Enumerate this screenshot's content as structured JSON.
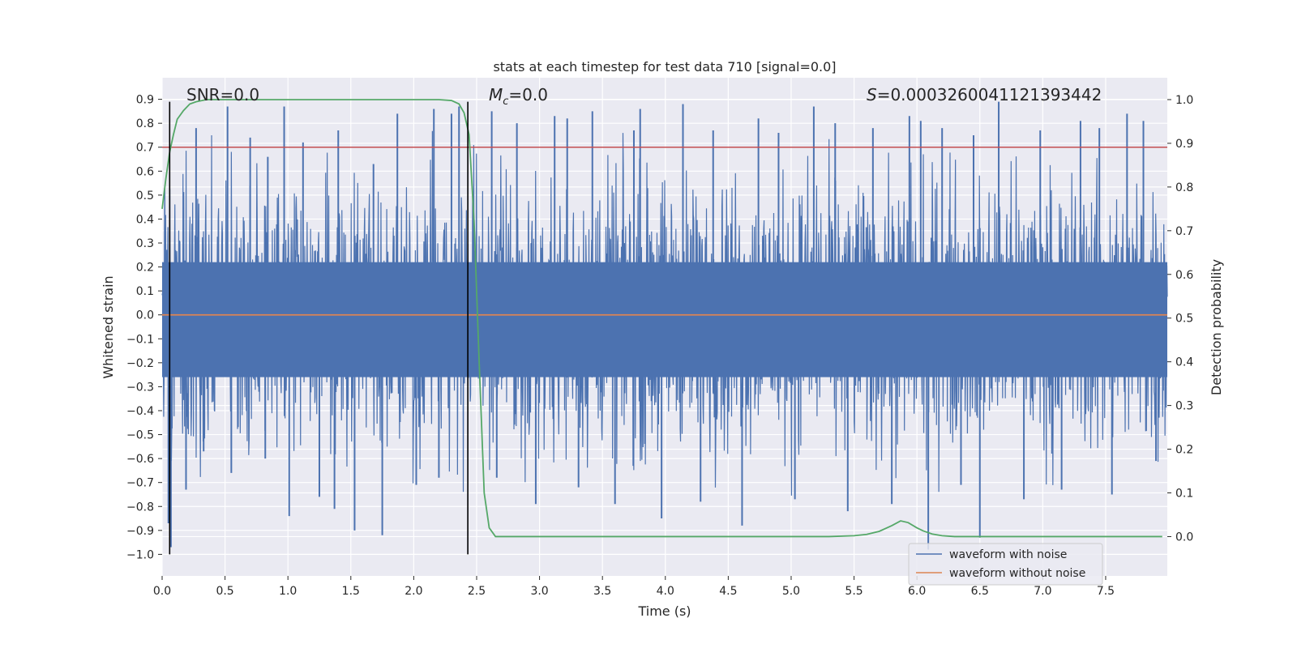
{
  "chart_data": {
    "type": "line",
    "title": "stats at each timestep for test data 710 [signal=0.0]",
    "xlabel": "Time (s)",
    "ylabel": "Whitened strain",
    "y2label": "Detection probability",
    "xlim": [
      0.0,
      7.99
    ],
    "ylim": [
      -1.09,
      0.99
    ],
    "y2lim": [
      -0.09,
      1.05
    ],
    "x_ticks": [
      0.0,
      0.5,
      1.0,
      1.5,
      2.0,
      2.5,
      3.0,
      3.5,
      4.0,
      4.5,
      5.0,
      5.5,
      6.0,
      6.5,
      7.0,
      7.5
    ],
    "x_tick_labels": [
      "0.0",
      "0.5",
      "1.0",
      "1.5",
      "2.0",
      "2.5",
      "3.0",
      "3.5",
      "4.0",
      "4.5",
      "5.0",
      "5.5",
      "6.0",
      "6.5",
      "7.0",
      "7.5"
    ],
    "y_ticks": [
      0.9,
      0.8,
      0.7,
      0.6,
      0.5,
      0.4,
      0.3,
      0.2,
      0.1,
      0.0,
      -0.1,
      -0.2,
      -0.3,
      -0.4,
      -0.5,
      -0.6,
      -0.7,
      -0.8,
      -0.9,
      -1.0
    ],
    "y_tick_labels": [
      "0.9",
      "0.8",
      "0.7",
      "0.6",
      "0.5",
      "0.4",
      "0.3",
      "0.2",
      "0.1",
      "0.0",
      "−0.1",
      "−0.2",
      "−0.3",
      "−0.4",
      "−0.5",
      "−0.6",
      "−0.7",
      "−0.8",
      "−0.9",
      "−1.0"
    ],
    "y2_ticks": [
      1.0,
      0.9,
      0.8,
      0.7,
      0.6,
      0.5,
      0.4,
      0.3,
      0.2,
      0.1,
      0.0
    ],
    "y2_tick_labels": [
      "1.0",
      "0.9",
      "0.8",
      "0.7",
      "0.6",
      "0.5",
      "0.4",
      "0.3",
      "0.2",
      "0.1",
      "0.0"
    ],
    "grid": true,
    "legend_placement": "lower-right",
    "annotations": {
      "snr": "SNR=0.0",
      "mc_symbol": "M",
      "mc_sub": "c",
      "mc_value": "=0.0",
      "s_symbol": "S",
      "s_value": "=0.00032600411213934​42"
    },
    "series": [
      {
        "name": "waveform with noise",
        "color": "#4c72b0",
        "axis": "left",
        "kind": "noise",
        "envelope_amplitude": 0.5,
        "peaks": [
          [
            0.05,
            -0.87
          ],
          [
            0.07,
            -0.97
          ],
          [
            0.19,
            -0.73
          ],
          [
            0.27,
            0.78
          ],
          [
            0.33,
            -0.57
          ],
          [
            0.52,
            0.87
          ],
          [
            0.55,
            -0.66
          ],
          [
            0.7,
            0.74
          ],
          [
            0.82,
            -0.6
          ],
          [
            0.84,
            0.66
          ],
          [
            0.97,
            0.87
          ],
          [
            1.01,
            -0.84
          ],
          [
            1.12,
            0.72
          ],
          [
            1.25,
            -0.76
          ],
          [
            1.37,
            -0.81
          ],
          [
            1.4,
            0.77
          ],
          [
            1.53,
            -0.9
          ],
          [
            1.68,
            0.63
          ],
          [
            1.75,
            -0.92
          ],
          [
            1.87,
            0.84
          ],
          [
            2.02,
            -0.71
          ],
          [
            2.16,
            0.86
          ],
          [
            2.2,
            -0.68
          ],
          [
            2.3,
            0.84
          ],
          [
            2.36,
            0.87
          ],
          [
            2.62,
            0.85
          ],
          [
            2.66,
            -0.68
          ],
          [
            2.82,
            0.8
          ],
          [
            2.97,
            -0.79
          ],
          [
            3.12,
            0.83
          ],
          [
            3.22,
            0.82
          ],
          [
            3.31,
            -0.72
          ],
          [
            3.42,
            0.85
          ],
          [
            3.6,
            -0.79
          ],
          [
            3.75,
            0.77
          ],
          [
            3.8,
            0.86
          ],
          [
            3.97,
            -0.85
          ],
          [
            4.14,
            0.88
          ],
          [
            4.28,
            -0.78
          ],
          [
            4.38,
            0.77
          ],
          [
            4.61,
            -0.88
          ],
          [
            4.74,
            0.82
          ],
          [
            4.9,
            0.76
          ],
          [
            5.03,
            -0.77
          ],
          [
            5.18,
            0.87
          ],
          [
            5.35,
            0.8
          ],
          [
            5.45,
            -0.82
          ],
          [
            5.65,
            0.78
          ],
          [
            5.8,
            -0.79
          ],
          [
            5.94,
            0.83
          ],
          [
            6.03,
            0.81
          ],
          [
            6.09,
            -0.98
          ],
          [
            6.2,
            0.78
          ],
          [
            6.35,
            -0.71
          ],
          [
            6.45,
            0.75
          ],
          [
            6.5,
            -0.93
          ],
          [
            6.65,
            0.89
          ],
          [
            6.85,
            -0.77
          ],
          [
            6.98,
            0.77
          ],
          [
            7.15,
            -0.73
          ],
          [
            7.3,
            0.81
          ],
          [
            7.45,
            0.78
          ],
          [
            7.55,
            -0.75
          ],
          [
            7.67,
            0.84
          ],
          [
            7.8,
            0.81
          ],
          [
            7.9,
            -0.61
          ]
        ]
      },
      {
        "name": "waveform without noise",
        "color": "#dd8452",
        "axis": "left",
        "x": [
          0.0,
          7.99
        ],
        "y": [
          0.0,
          0.0
        ]
      },
      {
        "color": "#55a868",
        "axis": "right",
        "x": [
          0.0,
          0.03,
          0.06,
          0.09,
          0.12,
          0.17,
          0.22,
          0.27,
          0.35,
          0.5,
          1.0,
          1.5,
          2.0,
          2.2,
          2.3,
          2.36,
          2.4,
          2.44,
          2.48,
          2.52,
          2.56,
          2.6,
          2.65,
          3.0,
          4.0,
          5.0,
          5.3,
          5.5,
          5.6,
          5.7,
          5.8,
          5.87,
          5.93,
          6.0,
          6.05,
          6.12,
          6.2,
          6.3,
          6.5,
          7.0,
          7.5,
          7.95
        ],
        "y": [
          0.75,
          0.82,
          0.88,
          0.92,
          0.955,
          0.975,
          0.99,
          0.995,
          1.0,
          1.0,
          1.0,
          1.0,
          1.0,
          1.0,
          0.998,
          0.99,
          0.97,
          0.92,
          0.72,
          0.4,
          0.1,
          0.02,
          0.0,
          0.0,
          0.0,
          0.0,
          0.0,
          0.002,
          0.005,
          0.012,
          0.025,
          0.036,
          0.032,
          0.02,
          0.013,
          0.006,
          0.002,
          0.0,
          0.0,
          0.0,
          0.0,
          0.0
        ]
      },
      {
        "color": "#c44e52",
        "axis": "left",
        "x": [
          0.0,
          7.99
        ],
        "y": [
          0.7,
          0.7
        ]
      },
      {
        "color": "#000000",
        "axis": "left",
        "kind": "vline",
        "x": [
          0.06,
          2.43
        ],
        "y": [
          -1.0,
          0.89
        ]
      }
    ]
  }
}
